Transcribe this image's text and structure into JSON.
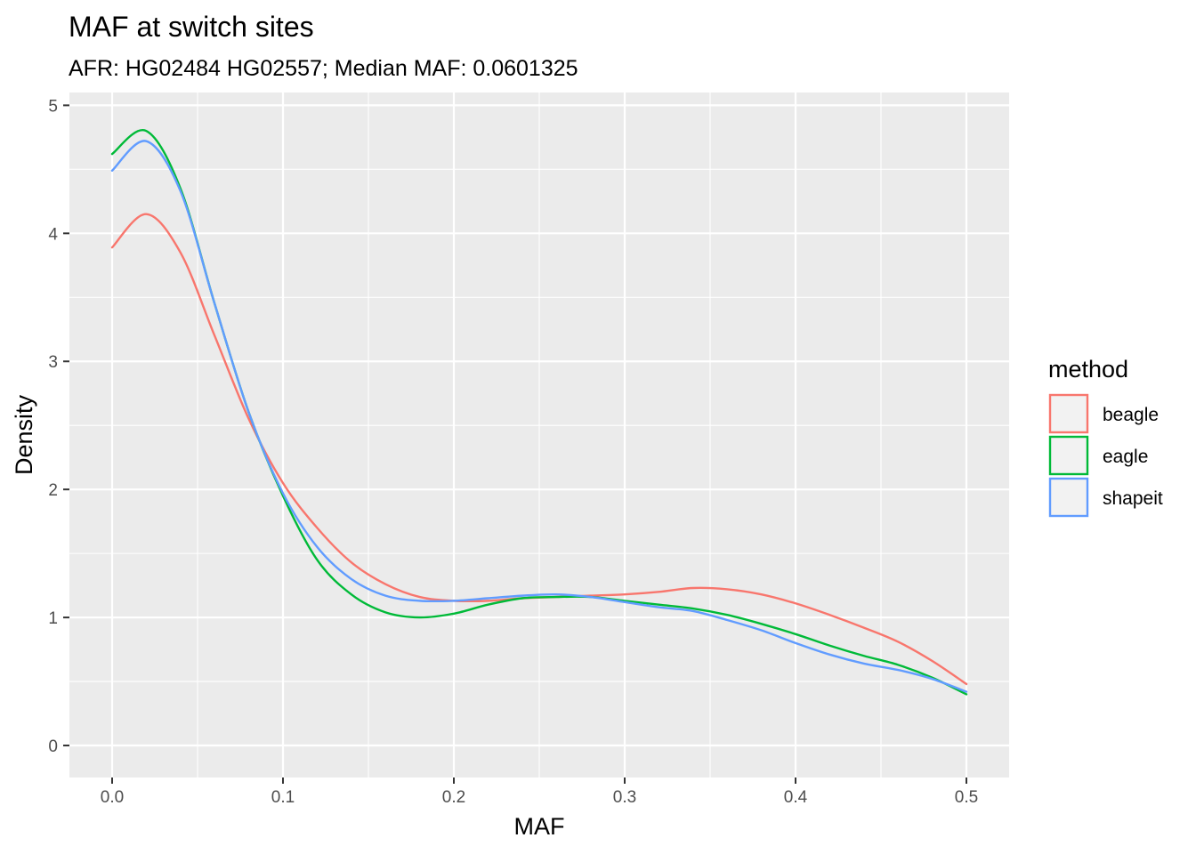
{
  "chart_data": {
    "type": "line",
    "title": "MAF at switch sites",
    "subtitle": "AFR: HG02484 HG02557; Median MAF: 0.0601325",
    "xlabel": "MAF",
    "ylabel": "Density",
    "xlim": [
      -0.025,
      0.525
    ],
    "ylim": [
      -0.25,
      5.1
    ],
    "x_ticks": [
      0.0,
      0.1,
      0.2,
      0.3,
      0.4,
      0.5
    ],
    "x_tick_labels": [
      "0.0",
      "0.1",
      "0.2",
      "0.3",
      "0.4",
      "0.5"
    ],
    "y_ticks": [
      0,
      1,
      2,
      3,
      4,
      5
    ],
    "y_tick_labels": [
      "0",
      "1",
      "2",
      "3",
      "4",
      "5"
    ],
    "grid": true,
    "legend": {
      "title": "method",
      "position": "right"
    },
    "x": [
      0.0,
      0.02,
      0.04,
      0.06,
      0.08,
      0.1,
      0.12,
      0.14,
      0.16,
      0.18,
      0.2,
      0.22,
      0.24,
      0.26,
      0.28,
      0.3,
      0.32,
      0.34,
      0.36,
      0.38,
      0.4,
      0.42,
      0.44,
      0.46,
      0.48,
      0.5
    ],
    "series": [
      {
        "name": "beagle",
        "color": "#F8766D",
        "values": [
          3.89,
          4.15,
          3.85,
          3.2,
          2.55,
          2.05,
          1.7,
          1.43,
          1.26,
          1.16,
          1.13,
          1.13,
          1.15,
          1.16,
          1.17,
          1.18,
          1.2,
          1.23,
          1.22,
          1.18,
          1.11,
          1.02,
          0.92,
          0.81,
          0.66,
          0.48
        ]
      },
      {
        "name": "eagle",
        "color": "#00BA38",
        "values": [
          4.62,
          4.8,
          4.35,
          3.45,
          2.6,
          1.95,
          1.45,
          1.18,
          1.04,
          1.0,
          1.03,
          1.1,
          1.15,
          1.16,
          1.16,
          1.13,
          1.1,
          1.07,
          1.02,
          0.95,
          0.87,
          0.78,
          0.7,
          0.63,
          0.53,
          0.4
        ]
      },
      {
        "name": "shapeit",
        "color": "#619CFF",
        "values": [
          4.49,
          4.72,
          4.33,
          3.45,
          2.6,
          1.97,
          1.55,
          1.3,
          1.17,
          1.13,
          1.13,
          1.15,
          1.17,
          1.18,
          1.16,
          1.12,
          1.08,
          1.05,
          0.98,
          0.9,
          0.8,
          0.71,
          0.64,
          0.59,
          0.52,
          0.42
        ]
      }
    ]
  }
}
